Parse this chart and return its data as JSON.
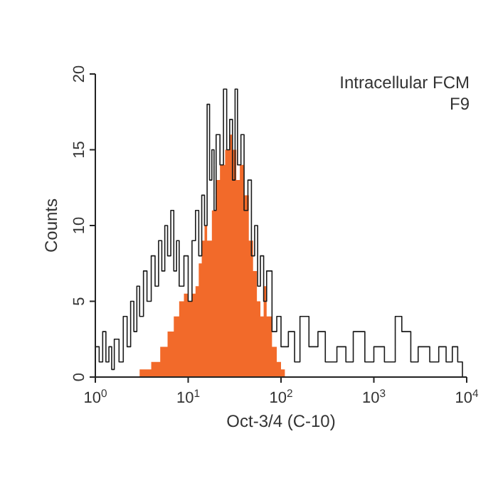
{
  "chart_data": {
    "type": "step",
    "xlabel": "Oct-3/4 (C-10)",
    "ylabel": "Counts",
    "annotations": [
      "Intracellular FCM",
      "F9"
    ],
    "log": "x",
    "grid": false,
    "xlim": [
      1,
      10000
    ],
    "ylim": [
      0,
      20
    ],
    "xticks": [
      {
        "value": 1,
        "label": "10$^{0}$"
      },
      {
        "value": 10,
        "label": "10$^{1}$"
      },
      {
        "value": 100,
        "label": "10$^{2}$"
      },
      {
        "value": 1000,
        "label": "10$^{3}$"
      },
      {
        "value": 10000,
        "label": "10$^{4}$"
      }
    ],
    "yticks": [
      0,
      5,
      10,
      15,
      20
    ],
    "series": [
      {
        "type": "area",
        "color": "#f26a2a",
        "x": [
          3,
          4,
          5,
          6,
          7,
          8,
          9,
          10,
          11,
          12,
          13,
          14,
          15,
          16,
          18,
          20,
          22,
          25,
          28,
          30,
          33,
          36,
          40,
          45,
          50,
          55,
          60,
          65,
          70,
          80,
          90,
          100,
          110
        ],
        "values": [
          0.5,
          1,
          2,
          3,
          4,
          5,
          5.5,
          5,
          5.5,
          6,
          7.5,
          9,
          10,
          9,
          11,
          13,
          14,
          15,
          16,
          15,
          13,
          14,
          12,
          9,
          7,
          5,
          4,
          6,
          4,
          2,
          1,
          0.5,
          0
        ]
      },
      {
        "color": "#1a1a1a",
        "x": [
          1,
          1.1,
          1.2,
          1.3,
          1.4,
          1.5,
          1.6,
          1.8,
          2,
          2.2,
          2.4,
          2.6,
          2.8,
          3,
          3.3,
          3.6,
          4,
          4.4,
          4.8,
          5.2,
          5.6,
          6,
          6.5,
          7,
          7.5,
          8,
          9,
          10,
          11,
          12,
          13,
          14,
          15,
          16,
          17,
          18,
          19,
          20,
          22,
          24,
          26,
          28,
          30,
          32,
          34,
          37,
          40,
          44,
          48,
          52,
          56,
          60,
          65,
          70,
          80,
          90,
          100,
          120,
          140,
          160,
          200,
          250,
          300,
          400,
          500,
          600,
          800,
          1000,
          1300,
          1700,
          2000,
          2500,
          3000,
          4000,
          5000,
          6000,
          7000,
          8000,
          9000
        ],
        "values": [
          2,
          1,
          3,
          1,
          2,
          0.5,
          2.5,
          1,
          4,
          2,
          5,
          3,
          6,
          4,
          7,
          5,
          8,
          6,
          9,
          7,
          10,
          8,
          11,
          7,
          9,
          6,
          8,
          5,
          9,
          11,
          8,
          12,
          10,
          18,
          13,
          15,
          11,
          16,
          14,
          19,
          15,
          17,
          13,
          19,
          14,
          16,
          11,
          13,
          8,
          10,
          6,
          8,
          5,
          7,
          3,
          4,
          2,
          3,
          1,
          4,
          2,
          3,
          1,
          2,
          1,
          3,
          1,
          2,
          1,
          4,
          3,
          1,
          2,
          1,
          2,
          1,
          2,
          1,
          0
        ]
      }
    ]
  }
}
